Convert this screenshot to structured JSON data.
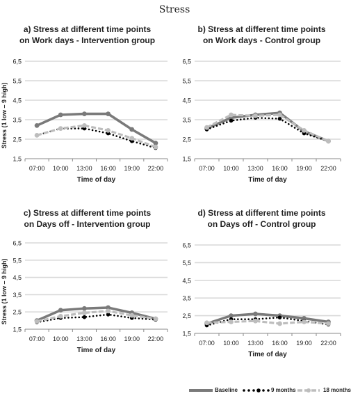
{
  "title": "Stress",
  "x_label": "Time of day",
  "y_label": "Stress  (1 low – 9 high)",
  "y_ticks": [
    "6,5",
    "5,5",
    "4,5",
    "3,5",
    "2,5",
    "1,5"
  ],
  "y_tick_values": [
    6.5,
    5.5,
    4.5,
    3.5,
    2.5,
    1.5
  ],
  "x_ticks": [
    "07:00",
    "10:00",
    "13:00",
    "16:00",
    "19:00",
    "22:00"
  ],
  "legend": {
    "baseline": "Baseline",
    "m9": "9 months",
    "m18": "18 months"
  },
  "colors": {
    "baseline": "#7a7a7a",
    "m9": "#000000",
    "m18": "#bdbdbd",
    "grid": "#d9d9d9"
  },
  "panels": [
    {
      "title_line1": "a) Stress at different time points",
      "title_line2": "on Work days - Intervention group"
    },
    {
      "title_line1": "b) Stress at different time points",
      "title_line2": "on Work days - Control group"
    },
    {
      "title_line1": "c) Stress at different time points",
      "title_line2": "on Days off - Intervention group"
    },
    {
      "title_line1": "d) Stress at different time points",
      "title_line2": "on Days off - Control group"
    }
  ],
  "chart_data": [
    {
      "type": "line",
      "title": "a) Stress at different time points on Work days - Intervention group",
      "xlabel": "Time of day",
      "ylabel": "Stress  (1 low – 9 high)",
      "categories": [
        "07:00",
        "10:00",
        "13:00",
        "16:00",
        "19:00",
        "22:00"
      ],
      "ylim": [
        1.5,
        6.5
      ],
      "grid": true,
      "series": [
        {
          "name": "Baseline",
          "values": [
            3.2,
            3.75,
            3.8,
            3.8,
            3.0,
            2.3
          ]
        },
        {
          "name": "9 months",
          "values": [
            2.7,
            3.05,
            3.05,
            2.8,
            2.4,
            2.05
          ]
        },
        {
          "name": "18 months",
          "values": [
            2.7,
            3.05,
            3.2,
            2.95,
            2.55,
            2.1
          ]
        }
      ]
    },
    {
      "type": "line",
      "title": "b) Stress at different time points on Work days - Control group",
      "xlabel": "Time of day",
      "ylabel": "",
      "categories": [
        "07:00",
        "10:00",
        "13:00",
        "16:00",
        "19:00",
        "22:00"
      ],
      "ylim": [
        1.5,
        6.5
      ],
      "grid": true,
      "series": [
        {
          "name": "Baseline",
          "values": [
            3.05,
            3.6,
            3.75,
            3.85,
            2.9,
            2.4
          ]
        },
        {
          "name": "9 months",
          "values": [
            3.0,
            3.45,
            3.6,
            3.55,
            2.8,
            2.4
          ]
        },
        {
          "name": "18 months",
          "values": [
            3.1,
            3.75,
            3.7,
            3.75,
            2.95,
            2.4
          ]
        }
      ]
    },
    {
      "type": "line",
      "title": "c) Stress at different time points on Days off - Intervention group",
      "xlabel": "Time of day",
      "ylabel": "Stress  (1 low – 9 high)",
      "categories": [
        "07:00",
        "10:00",
        "13:00",
        "16:00",
        "19:00",
        "22:00"
      ],
      "ylim": [
        1.5,
        6.5
      ],
      "grid": true,
      "series": [
        {
          "name": "Baseline",
          "values": [
            2.0,
            2.6,
            2.7,
            2.75,
            2.45,
            2.1
          ]
        },
        {
          "name": "9 months",
          "values": [
            1.9,
            2.15,
            2.2,
            2.35,
            2.15,
            2.05
          ]
        },
        {
          "name": "18 months",
          "values": [
            1.95,
            2.25,
            2.45,
            2.55,
            2.3,
            2.1
          ]
        }
      ]
    },
    {
      "type": "line",
      "title": "d) Stress at different time points on Days off - Control group",
      "xlabel": "Time of day",
      "ylabel": "",
      "categories": [
        "07:00",
        "10:00",
        "13:00",
        "16:00",
        "19:00",
        "22:00"
      ],
      "ylim": [
        1.5,
        6.5
      ],
      "grid": true,
      "series": [
        {
          "name": "Baseline",
          "values": [
            2.05,
            2.5,
            2.6,
            2.5,
            2.35,
            2.15
          ]
        },
        {
          "name": "9 months",
          "values": [
            1.95,
            2.3,
            2.3,
            2.4,
            2.2,
            2.0
          ]
        },
        {
          "name": "18 months",
          "values": [
            2.1,
            2.15,
            2.2,
            2.05,
            2.15,
            2.05
          ]
        }
      ]
    }
  ]
}
